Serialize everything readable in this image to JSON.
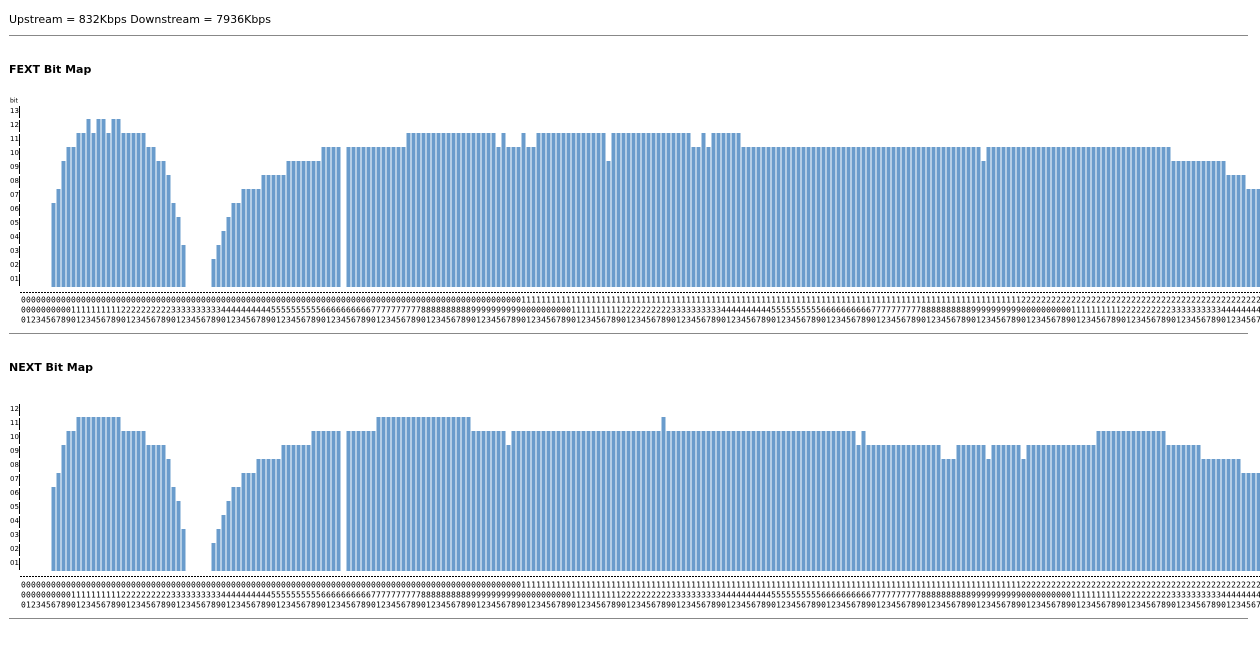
{
  "header": {
    "text": "Upstream = 832Kbps Downstream = 7936Kbps"
  },
  "chart_data": [
    {
      "type": "bar",
      "title": "FEXT Bit Map",
      "y_label": "bit",
      "color": "#6a9ccc",
      "ylim": [
        0,
        13
      ],
      "yticks": [
        {
          "value": 1,
          "label": "01"
        },
        {
          "value": 2,
          "label": "02"
        },
        {
          "value": 3,
          "label": "03"
        },
        {
          "value": 4,
          "label": "04"
        },
        {
          "value": 5,
          "label": "05"
        },
        {
          "value": 6,
          "label": "06"
        },
        {
          "value": 7,
          "label": "07"
        },
        {
          "value": 8,
          "label": "08"
        },
        {
          "value": 9,
          "label": "09"
        },
        10,
        11,
        12,
        13
      ],
      "x_label_rows": [
        "00000000000000000000000000000000000000000000000000000000000000000000000000000000000000000000000000001111111111111111111111111111111111111111111111111111111111111111111111111111111111111111111111111111222222222222222222222222222222222222222222222222",
        "00000000001111111111222222222233333333334444444444555555555566666666667777777777888888888899999999990000000000111111111122222222223333333333444444444455555555556666666666777777777788888888889999999999000000000011111111112222222222333333333344444444",
        "01234567890123456789012345678901234567890123456789012345678901234567890123456789012345678901234567890123456789012345678901234567890123456789012345678901234567890123456789012345678901234567890123456789012345678901234567890123456789012345678901234567"
      ],
      "values": [
        0,
        0,
        0,
        0,
        0,
        0,
        6,
        7,
        9,
        10,
        10,
        11,
        11,
        12,
        11,
        12,
        12,
        11,
        12,
        12,
        11,
        11,
        11,
        11,
        11,
        10,
        10,
        9,
        9,
        8,
        6,
        5,
        3,
        0,
        0,
        0,
        0,
        0,
        2,
        3,
        4,
        5,
        6,
        6,
        7,
        7,
        7,
        7,
        8,
        8,
        8,
        8,
        8,
        9,
        9,
        9,
        9,
        9,
        9,
        9,
        10,
        10,
        10,
        10,
        0,
        10,
        10,
        10,
        10,
        10,
        10,
        10,
        10,
        10,
        10,
        10,
        10,
        11,
        11,
        11,
        11,
        11,
        11,
        11,
        11,
        11,
        11,
        11,
        11,
        11,
        11,
        11,
        11,
        11,
        11,
        10,
        11,
        10,
        10,
        10,
        11,
        10,
        10,
        11,
        11,
        11,
        11,
        11,
        11,
        11,
        11,
        11,
        11,
        11,
        11,
        11,
        11,
        9,
        11,
        11,
        11,
        11,
        11,
        11,
        11,
        11,
        11,
        11,
        11,
        11,
        11,
        11,
        11,
        11,
        10,
        10,
        11,
        10,
        11,
        11,
        11,
        11,
        11,
        11,
        10,
        10,
        10,
        10,
        10,
        10,
        10,
        10,
        10,
        10,
        10,
        10,
        10,
        10,
        10,
        10,
        10,
        10,
        10,
        10,
        10,
        10,
        10,
        10,
        10,
        10,
        10,
        10,
        10,
        10,
        10,
        10,
        10,
        10,
        10,
        10,
        10,
        10,
        10,
        10,
        10,
        10,
        10,
        10,
        10,
        10,
        10,
        10,
        9,
        10,
        10,
        10,
        10,
        10,
        10,
        10,
        10,
        10,
        10,
        10,
        10,
        10,
        10,
        10,
        10,
        10,
        10,
        10,
        10,
        10,
        10,
        10,
        10,
        10,
        10,
        10,
        10,
        10,
        10,
        10,
        10,
        10,
        10,
        10,
        10,
        10,
        9,
        9,
        9,
        9,
        9,
        9,
        9,
        9,
        9,
        9,
        9,
        8,
        8,
        8,
        8,
        7,
        7,
        7
      ]
    },
    {
      "type": "bar",
      "title": "NEXT Bit Map",
      "color": "#6a9ccc",
      "ylim": [
        0,
        12
      ],
      "yticks": [
        {
          "value": 1,
          "label": "01"
        },
        {
          "value": 2,
          "label": "02"
        },
        {
          "value": 3,
          "label": "03"
        },
        {
          "value": 4,
          "label": "04"
        },
        {
          "value": 5,
          "label": "05"
        },
        {
          "value": 6,
          "label": "06"
        },
        {
          "value": 7,
          "label": "07"
        },
        {
          "value": 8,
          "label": "08"
        },
        {
          "value": 9,
          "label": "09"
        },
        10,
        11,
        12
      ],
      "x_label_rows": [
        "00000000000000000000000000000000000000000000000000000000000000000000000000000000000000000000000000001111111111111111111111111111111111111111111111111111111111111111111111111111111111111111111111111111222222222222222222222222222222222222222222222222",
        "00000000001111111111222222222233333333334444444444555555555566666666667777777777888888888899999999990000000000111111111122222222223333333333444444444455555555556666666666777777777788888888889999999999000000000011111111112222222222333333333344444444",
        "01234567890123456789012345678901234567890123456789012345678901234567890123456789012345678901234567890123456789012345678901234567890123456789012345678901234567890123456789012345678901234567890123456789012345678901234567890123456789012345678901234567"
      ],
      "values": [
        0,
        0,
        0,
        0,
        0,
        0,
        6,
        7,
        9,
        10,
        10,
        11,
        11,
        11,
        11,
        11,
        11,
        11,
        11,
        11,
        10,
        10,
        10,
        10,
        10,
        9,
        9,
        9,
        9,
        8,
        6,
        5,
        3,
        0,
        0,
        0,
        0,
        0,
        2,
        3,
        4,
        5,
        6,
        6,
        7,
        7,
        7,
        8,
        8,
        8,
        8,
        8,
        9,
        9,
        9,
        9,
        9,
        9,
        10,
        10,
        10,
        10,
        10,
        10,
        0,
        10,
        10,
        10,
        10,
        10,
        10,
        11,
        11,
        11,
        11,
        11,
        11,
        11,
        11,
        11,
        11,
        11,
        11,
        11,
        11,
        11,
        11,
        11,
        11,
        11,
        10,
        10,
        10,
        10,
        10,
        10,
        10,
        9,
        10,
        10,
        10,
        10,
        10,
        10,
        10,
        10,
        10,
        10,
        10,
        10,
        10,
        10,
        10,
        10,
        10,
        10,
        10,
        10,
        10,
        10,
        10,
        10,
        10,
        10,
        10,
        10,
        10,
        10,
        11,
        10,
        10,
        10,
        10,
        10,
        10,
        10,
        10,
        10,
        10,
        10,
        10,
        10,
        10,
        10,
        10,
        10,
        10,
        10,
        10,
        10,
        10,
        10,
        10,
        10,
        10,
        10,
        10,
        10,
        10,
        10,
        10,
        10,
        10,
        10,
        10,
        10,
        10,
        9,
        10,
        9,
        9,
        9,
        9,
        9,
        9,
        9,
        9,
        9,
        9,
        9,
        9,
        9,
        9,
        9,
        8,
        8,
        8,
        9,
        9,
        9,
        9,
        9,
        9,
        8,
        9,
        9,
        9,
        9,
        9,
        9,
        8,
        9,
        9,
        9,
        9,
        9,
        9,
        9,
        9,
        9,
        9,
        9,
        9,
        9,
        9,
        10,
        10,
        10,
        10,
        10,
        10,
        10,
        10,
        10,
        10,
        10,
        10,
        10,
        10,
        9,
        9,
        9,
        9,
        9,
        9,
        9,
        8,
        8,
        8,
        8,
        8,
        8,
        8,
        8,
        7,
        7,
        7,
        7
      ]
    }
  ]
}
